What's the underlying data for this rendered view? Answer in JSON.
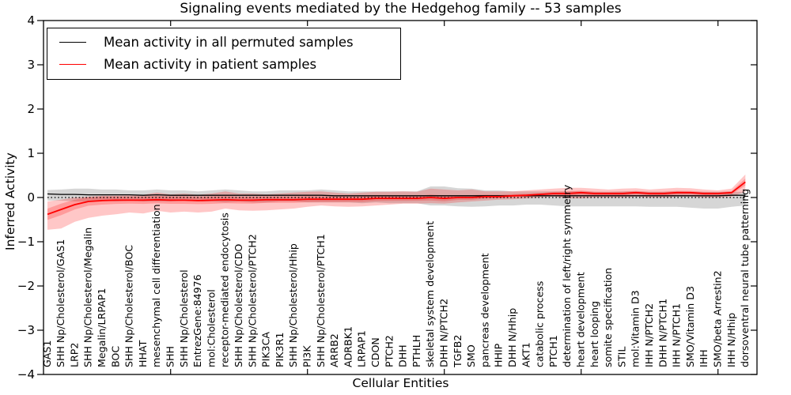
{
  "chart_data": {
    "type": "line",
    "title": "Signaling events mediated by the Hedgehog family -- 53 samples",
    "xlabel": "Cellular Entities",
    "ylabel": "Inferred Activity",
    "ylim": [
      -4,
      4
    ],
    "yticks": [
      -4,
      -3,
      -2,
      -1,
      0,
      1,
      2,
      3,
      4
    ],
    "xticks_every": 10,
    "grid": false,
    "zero_line": {
      "style": "dotted",
      "color": "#000000",
      "y": 0
    },
    "legend": {
      "position": "upper left",
      "entries": [
        {
          "label": "Mean activity in all permuted samples",
          "color": "#000000"
        },
        {
          "label": "Mean activity in patient samples",
          "color": "#ff0000"
        }
      ]
    },
    "categories": [
      "GAS1",
      "SHH Np/Cholesterol/GAS1",
      "LRP2",
      "SHH Np/Cholesterol/Megalin",
      "Megalin/LRPAP1",
      "BOC",
      "SHH Np/Cholesterol/BOC",
      "HHAT",
      "mesenchymal cell differentiation",
      "SHH",
      "SHH Np/Cholesterol",
      "EntrezGene:84976",
      "mol:Cholesterol",
      "receptor-mediated endocytosis",
      "SHH Np/Cholesterol/CDO",
      "SHH Np/Cholesterol/PTCH2",
      "PIK3CA",
      "PIK3R1",
      "SHH Np/Cholesterol/Hhip",
      "PI3K",
      "SHH Np/Cholesterol/PTCH1",
      "ARRB2",
      "ADRBK1",
      "LRPAP1",
      "CDON",
      "PTCH2",
      "DHH",
      "PTHLH",
      "skeletal system development",
      "DHH N/PTCH2",
      "TGFB2",
      "SMO",
      "pancreas development",
      "HHIP",
      "DHH N/Hhip",
      "AKT1",
      "catabolic process",
      "PTCH1",
      "determination of left/right symmetry",
      "heart development",
      "heart looping",
      "somite specification",
      "STIL",
      "mol:Vitamin D3",
      "IHH N/PTCH2",
      "DHH N/PTCH1",
      "IHH N/PTCH1",
      "SMO/Vitamin D3",
      "IHH",
      "SMO/beta Arrestin2",
      "IHH N/Hhip",
      "dorsoventral neural tube patterning"
    ],
    "series": [
      {
        "name": "Mean activity in all permuted samples",
        "color": "#000000",
        "band_color": "rgba(0,0,0,0.16)",
        "values": [
          0.08,
          0.07,
          0.07,
          0.06,
          0.06,
          0.06,
          0.06,
          0.05,
          0.06,
          0.05,
          0.05,
          0.05,
          0.05,
          0.05,
          0.05,
          0.05,
          0.05,
          0.05,
          0.05,
          0.05,
          0.05,
          0.04,
          0.04,
          0.04,
          0.04,
          0.04,
          0.04,
          0.04,
          0.04,
          0.04,
          0.04,
          0.04,
          0.04,
          0.04,
          0.04,
          0.04,
          0.04,
          0.04,
          0.04,
          0.04,
          0.04,
          0.04,
          0.04,
          0.04,
          0.04,
          0.04,
          0.04,
          0.04,
          0.04,
          0.04,
          0.05,
          0.05
        ],
        "band_lo": [
          -0.07,
          -0.07,
          -0.09,
          -0.09,
          -0.07,
          -0.09,
          -0.07,
          -0.09,
          -0.09,
          -0.09,
          -0.07,
          -0.09,
          -0.09,
          -0.11,
          -0.09,
          -0.11,
          -0.11,
          -0.09,
          -0.09,
          -0.11,
          -0.11,
          -0.11,
          -0.11,
          -0.13,
          -0.11,
          -0.13,
          -0.13,
          -0.13,
          -0.18,
          -0.18,
          -0.2,
          -0.21,
          -0.2,
          -0.18,
          -0.18,
          -0.16,
          -0.16,
          -0.18,
          -0.2,
          -0.2,
          -0.2,
          -0.2,
          -0.2,
          -0.2,
          -0.21,
          -0.21,
          -0.21,
          -0.23,
          -0.25,
          -0.25,
          -0.21,
          -0.18
        ],
        "band_hi": [
          0.17,
          0.18,
          0.2,
          0.2,
          0.18,
          0.18,
          0.16,
          0.16,
          0.18,
          0.16,
          0.16,
          0.14,
          0.16,
          0.18,
          0.16,
          0.14,
          0.14,
          0.16,
          0.16,
          0.16,
          0.18,
          0.16,
          0.14,
          0.14,
          0.14,
          0.14,
          0.14,
          0.14,
          0.25,
          0.25,
          0.21,
          0.2,
          0.16,
          0.16,
          0.14,
          0.14,
          0.14,
          0.14,
          0.14,
          0.14,
          0.13,
          0.13,
          0.14,
          0.14,
          0.13,
          0.13,
          0.14,
          0.13,
          0.13,
          0.13,
          0.13,
          0.13
        ]
      },
      {
        "name": "Mean activity in patient samples",
        "color": "#ff0000",
        "band_color": "rgba(255,0,0,0.22)",
        "values": [
          -0.38,
          -0.27,
          -0.16,
          -0.09,
          -0.07,
          -0.06,
          -0.06,
          -0.06,
          -0.05,
          -0.06,
          -0.06,
          -0.07,
          -0.06,
          -0.05,
          -0.06,
          -0.06,
          -0.05,
          -0.05,
          -0.05,
          -0.04,
          -0.04,
          -0.04,
          -0.04,
          -0.04,
          -0.02,
          -0.02,
          -0.02,
          -0.02,
          0,
          -0.02,
          0,
          0,
          0.02,
          0.02,
          0.04,
          0.05,
          0.07,
          0.09,
          0.09,
          0.11,
          0.09,
          0.09,
          0.09,
          0.11,
          0.09,
          0.09,
          0.11,
          0.11,
          0.09,
          0.09,
          0.11,
          0.35
        ],
        "band_lo": [
          -0.73,
          -0.7,
          -0.55,
          -0.46,
          -0.41,
          -0.38,
          -0.34,
          -0.36,
          -0.3,
          -0.34,
          -0.32,
          -0.34,
          -0.32,
          -0.25,
          -0.29,
          -0.3,
          -0.29,
          -0.27,
          -0.25,
          -0.21,
          -0.18,
          -0.2,
          -0.21,
          -0.2,
          -0.18,
          -0.16,
          -0.14,
          -0.14,
          -0.13,
          -0.14,
          -0.11,
          -0.09,
          -0.07,
          -0.05,
          -0.04,
          -0.02,
          0,
          0.02,
          -0.02,
          -0.02,
          0,
          0,
          0,
          0.02,
          0,
          0,
          0.02,
          0.02,
          0,
          0,
          0.02,
          0.13
        ],
        "band_hi": [
          -0.09,
          -0.05,
          0,
          0.02,
          0.04,
          0.04,
          0.05,
          0.06,
          0.11,
          0.07,
          0.09,
          0.06,
          0.09,
          0.14,
          0.09,
          0.09,
          0.07,
          0.09,
          0.11,
          0.13,
          0.14,
          0.11,
          0.09,
          0.11,
          0.13,
          0.13,
          0.14,
          0.13,
          0.2,
          0.18,
          0.16,
          0.18,
          0.14,
          0.14,
          0.14,
          0.16,
          0.18,
          0.2,
          0.22,
          0.22,
          0.2,
          0.18,
          0.2,
          0.21,
          0.18,
          0.2,
          0.22,
          0.21,
          0.18,
          0.16,
          0.2,
          0.52
        ]
      }
    ]
  }
}
